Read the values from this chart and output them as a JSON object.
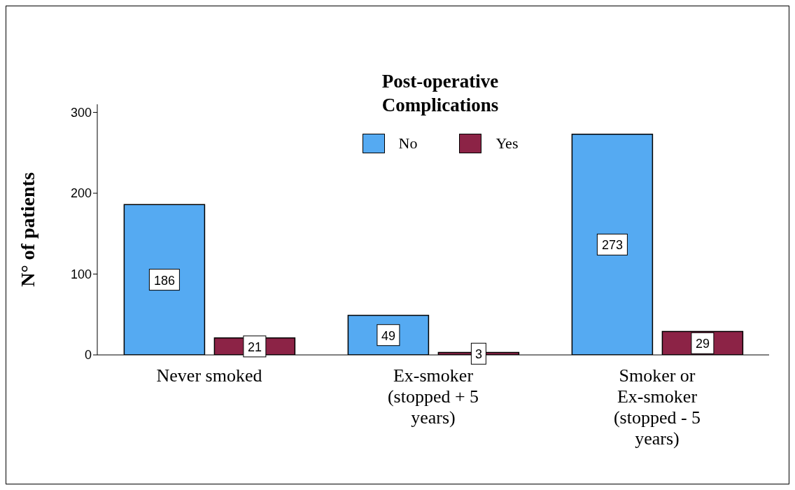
{
  "chart_data": {
    "type": "bar",
    "ylabel": "N° of patients",
    "legend_title": "Post-operative Complications",
    "legend": "top",
    "grid": false,
    "data_labels": true,
    "categories": [
      "Never smoked",
      "Ex-smoker (stopped + 5 years)",
      "Smoker or Ex-smoker (stopped - 5 years)"
    ],
    "series": [
      {
        "name": "No",
        "color": "#55aaf2",
        "values": [
          186,
          49,
          273
        ]
      },
      {
        "name": "Yes",
        "color": "#8c2346",
        "values": [
          21,
          3,
          29
        ]
      }
    ],
    "ylim": [
      0,
      310
    ],
    "yticks": [
      0,
      100,
      200,
      300
    ]
  }
}
